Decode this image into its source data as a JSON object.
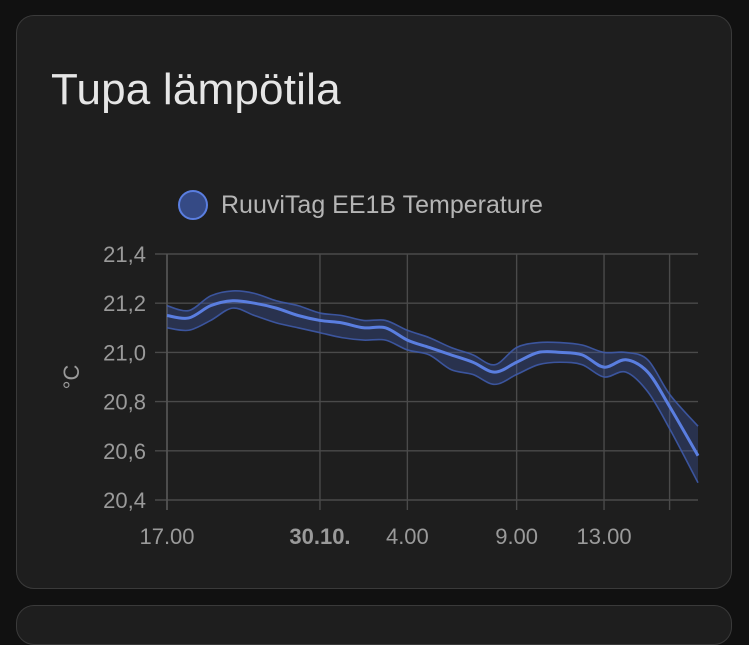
{
  "card": {
    "title": "Tupa lämpötila"
  },
  "chart_data": {
    "type": "line",
    "title": "Tupa lämpötila",
    "xlabel": "",
    "ylabel": "°C",
    "ylim": [
      20.4,
      21.4
    ],
    "xlim": [
      0,
      24.3
    ],
    "grid": true,
    "legend_position": "top",
    "y_ticks": [
      "21,4",
      "21,2",
      "21,0",
      "20,8",
      "20,6",
      "20,4"
    ],
    "y_tick_values": [
      21.4,
      21.2,
      21.0,
      20.8,
      20.6,
      20.4
    ],
    "x_ticks": [
      {
        "label": "17.00",
        "hours": 0,
        "bold": false
      },
      {
        "label": "30.10.",
        "hours": 7,
        "bold": true
      },
      {
        "label": "4.00",
        "hours": 11,
        "bold": false
      },
      {
        "label": "9.00",
        "hours": 16,
        "bold": false
      },
      {
        "label": "13.00",
        "hours": 20,
        "bold": false
      }
    ],
    "x_grid_hours": [
      0,
      7,
      11,
      16,
      20,
      23
    ],
    "series": [
      {
        "name": "RuuviTag EE1B Temperature",
        "color": "#5a7ee0",
        "band_color": "#3e5aa8",
        "x": [
          0,
          1,
          2,
          3,
          4,
          5,
          6,
          7,
          8,
          9,
          10,
          11,
          12,
          13,
          14,
          15,
          16,
          17,
          18,
          19,
          20,
          21,
          22,
          23,
          24.3
        ],
        "values": [
          21.15,
          21.14,
          21.19,
          21.21,
          21.2,
          21.18,
          21.15,
          21.13,
          21.12,
          21.1,
          21.1,
          21.05,
          21.02,
          20.99,
          20.96,
          20.92,
          20.96,
          21.0,
          21.0,
          20.99,
          20.94,
          20.97,
          20.92,
          20.78,
          20.58
        ],
        "min": [
          21.1,
          21.09,
          21.13,
          21.18,
          21.15,
          21.12,
          21.1,
          21.08,
          21.06,
          21.05,
          21.05,
          21.01,
          20.99,
          20.93,
          20.91,
          20.87,
          20.91,
          20.95,
          20.96,
          20.95,
          20.9,
          20.92,
          20.84,
          20.69,
          20.47
        ],
        "max": [
          21.19,
          21.17,
          21.23,
          21.25,
          21.24,
          21.21,
          21.19,
          21.16,
          21.15,
          21.13,
          21.13,
          21.09,
          21.06,
          21.02,
          20.99,
          20.95,
          21.02,
          21.04,
          21.04,
          21.03,
          21.0,
          21.0,
          20.97,
          20.83,
          20.7
        ]
      }
    ]
  }
}
